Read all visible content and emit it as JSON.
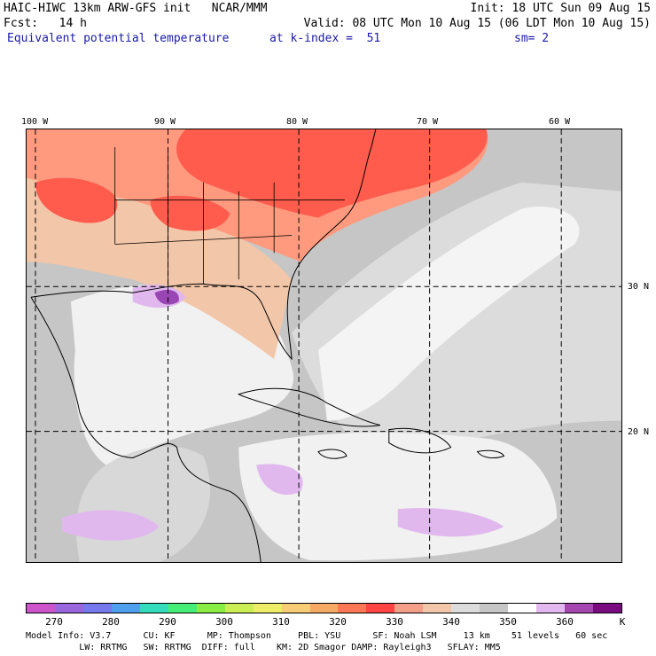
{
  "header": {
    "line1_left": "HAIC-HIWC 13km ARW-GFS init   NCAR/MMM",
    "line1_right": "Init: 18 UTC Sun 09 Aug 15",
    "line2_left": "Fcst:   14 h",
    "line2_right": "Valid: 08 UTC Mon 10 Aug 15 (06 LDT Mon 10 Aug 15)",
    "line3_left": "Equivalent potential temperature",
    "line3_mid": "at k-index =  51",
    "line3_right": "sm= 2"
  },
  "map": {
    "lon_labels": [
      "100 W",
      "90 W",
      "80 W",
      "70 W",
      "60 W"
    ],
    "lat_labels": [
      "30 N",
      "20 N"
    ],
    "field_colors": {
      "hot": "#ff5c4d",
      "warm": "#ff9a7f",
      "tan": "#f2c6a8",
      "gray": "#c6c6c6",
      "lightgray": "#dcdcdc",
      "white": "#f4f4f4",
      "lavender": "#e0b8ee",
      "purple": "#9a45b4"
    }
  },
  "colorbar": {
    "colors": [
      "#cc55cc",
      "#9966dd",
      "#7777ee",
      "#4f9fef",
      "#33ddbb",
      "#44ee77",
      "#88ee44",
      "#ccee55",
      "#eeee66",
      "#f7cc77",
      "#f7aa66",
      "#ff7755",
      "#ff4444",
      "#f4a088",
      "#f2c6a8",
      "#dcdcdc",
      "#c6c6c6",
      "#ffffff",
      "#e3b7ef",
      "#a445b0",
      "#7a0a80"
    ],
    "labels": [
      "270",
      "280",
      "290",
      "300",
      "310",
      "320",
      "330",
      "340",
      "350",
      "360",
      "K"
    ]
  },
  "footer": {
    "line1": "Model Info: V3.7      CU: KF      MP: Thompson     PBL: YSU      SF: Noah LSM     13 km    51 levels   60 sec",
    "line2": "          LW: RRTMG   SW: RRTMG  DIFF: full    KM: 2D Smagor DAMP: Rayleigh3   SFLAY: MM5"
  }
}
